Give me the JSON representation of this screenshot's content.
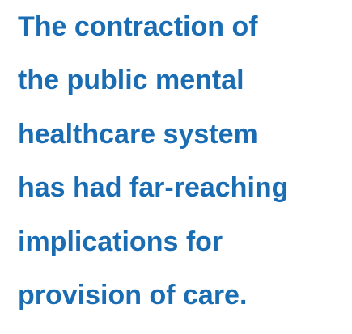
{
  "quote": {
    "lines": [
      "The contraction of",
      "the public mental",
      "healthcare system",
      "has had far-reaching",
      "implications for",
      "provision of care."
    ]
  }
}
